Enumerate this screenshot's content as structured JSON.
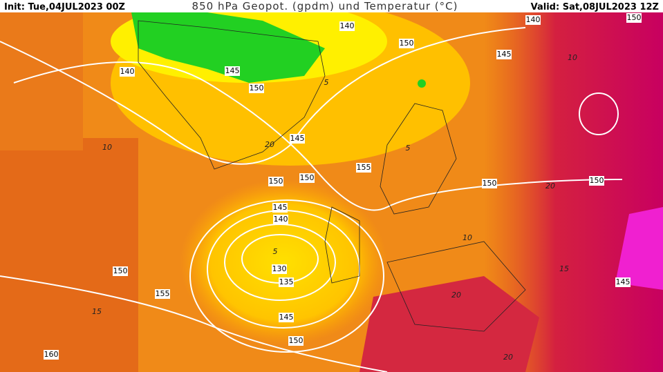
{
  "header": {
    "init": "Init: Tue,04JUL2023 00Z",
    "title": "850 hPa Geopot. (gpdm) und Temperatur (°C)",
    "valid": "Valid: Sat,08JUL2023 12Z"
  },
  "geopotential_labels": [
    140,
    140,
    150,
    150,
    145,
    140,
    145,
    150,
    145,
    155,
    150,
    150,
    150,
    150,
    145,
    140,
    130,
    135,
    145,
    150,
    150,
    155,
    145,
    160
  ],
  "temperature_labels": [
    10,
    5,
    10,
    20,
    5,
    10,
    15,
    20,
    5,
    15,
    20,
    20
  ]
}
